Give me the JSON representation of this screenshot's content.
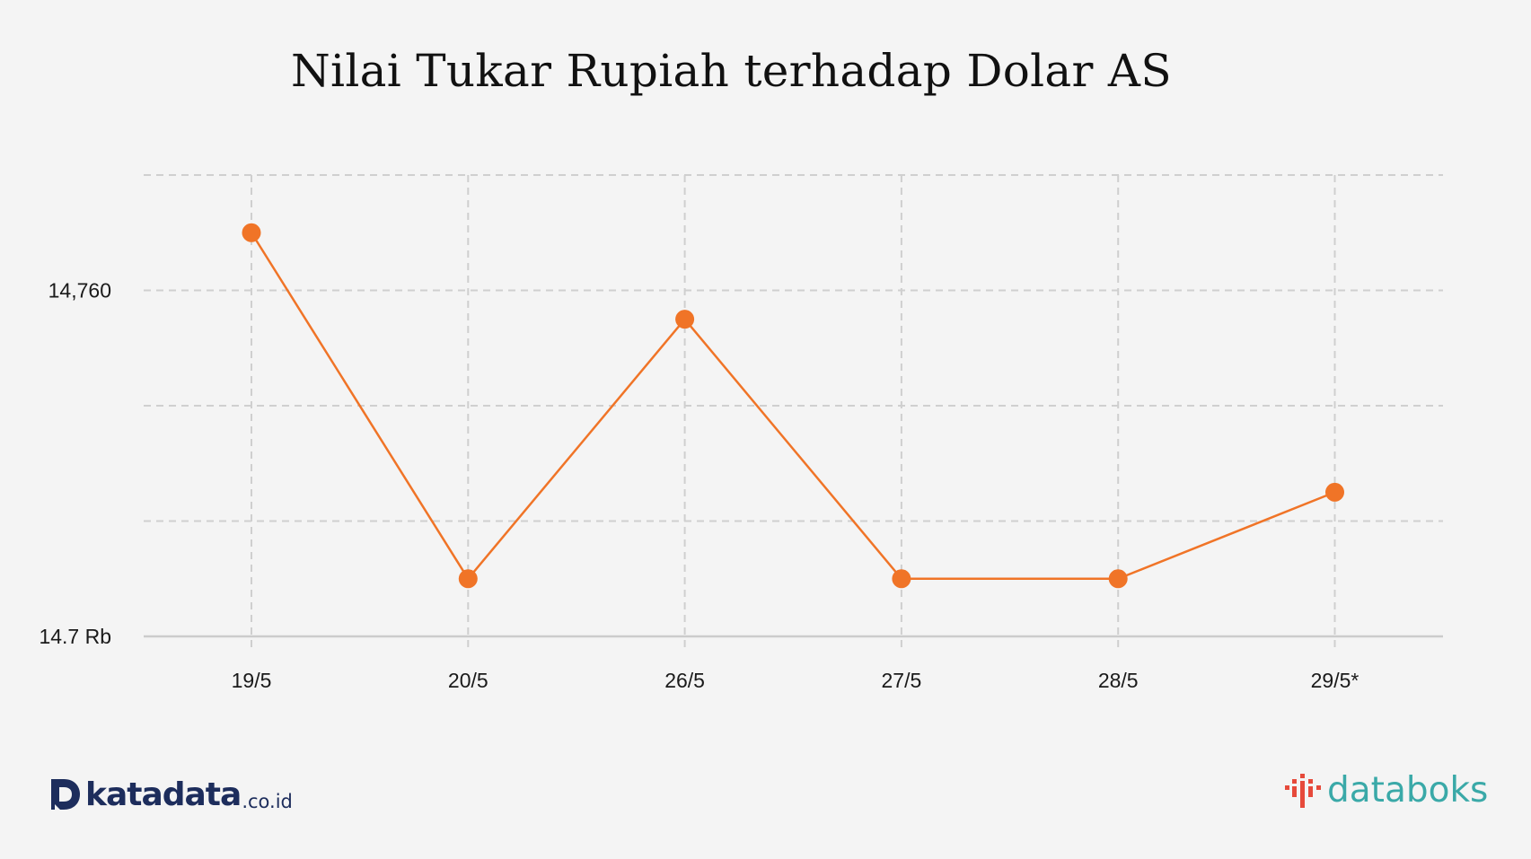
{
  "chart_data": {
    "type": "line",
    "title": "Nilai Tukar Rupiah terhadap Dolar AS",
    "categories": [
      "19/5",
      "20/5",
      "26/5",
      "27/5",
      "28/5",
      "29/5*"
    ],
    "series": [
      {
        "values": [
          14770,
          14710,
          14755,
          14710,
          14710,
          14725
        ]
      }
    ],
    "ylim": [
      14700,
      14780
    ],
    "yticks": [
      14700,
      14760
    ],
    "ytick_labels": [
      "14.7 Rb",
      "14,760"
    ],
    "grid": true,
    "line_color": "#f07427",
    "marker_color": "#f07427"
  },
  "logos": {
    "left": {
      "brand": "katadata",
      "suffix": ".co.id",
      "color": "#1d2d5c"
    },
    "right": {
      "brand": "databoks",
      "color": "#3aa9a8",
      "icon_color": "#e64a3b"
    }
  }
}
